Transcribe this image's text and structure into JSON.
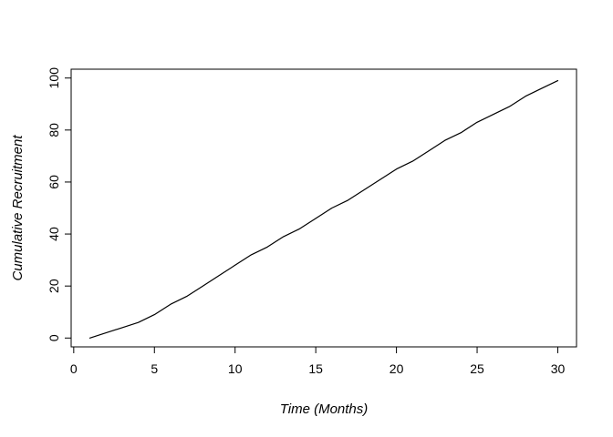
{
  "figure": {
    "background_color": "#ffffff",
    "axis_color": "#000000"
  },
  "chart_data": {
    "type": "line",
    "title": "",
    "xlabel": "Time (Months)",
    "ylabel": "Cumulative Recruitment",
    "x": [
      1,
      2,
      3,
      4,
      5,
      6,
      7,
      8,
      9,
      10,
      11,
      12,
      13,
      14,
      15,
      16,
      17,
      18,
      19,
      20,
      21,
      22,
      23,
      24,
      25,
      26,
      27,
      28,
      29,
      30
    ],
    "series": [
      {
        "name": "cumulative-recruitment",
        "values": [
          0,
          2,
          4,
          6,
          9,
          13,
          16,
          20,
          24,
          28,
          32,
          35,
          39,
          42,
          46,
          50,
          53,
          57,
          61,
          65,
          68,
          72,
          76,
          79,
          83,
          86,
          89,
          93,
          96,
          99
        ],
        "color": "#000000"
      }
    ],
    "x_ticks": [
      0,
      5,
      10,
      15,
      20,
      25,
      30
    ],
    "y_ticks": [
      0,
      20,
      40,
      60,
      80,
      100
    ],
    "xlim": [
      -0.16,
      31.16
    ],
    "ylim": [
      -3.4,
      103.4
    ],
    "grid": "off",
    "legend": "none",
    "y_tick_label_rotation": 90
  }
}
